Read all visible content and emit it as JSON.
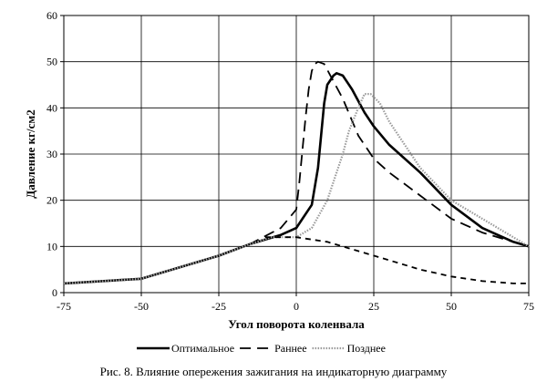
{
  "chart_data": {
    "type": "line",
    "title": "",
    "xlabel": "Угол поворота коленвала",
    "ylabel": "Давление кг/см2",
    "xlim": [
      -75,
      75
    ],
    "ylim": [
      0,
      60
    ],
    "x_ticks": [
      -75,
      -50,
      -25,
      0,
      25,
      50,
      75
    ],
    "y_ticks": [
      0,
      10,
      20,
      30,
      40,
      50,
      60
    ],
    "grid": true,
    "legend_position": "bottom",
    "series": [
      {
        "name": "Оптимальное",
        "style": "solid-bold",
        "color": "#000000",
        "points": [
          [
            -75,
            2
          ],
          [
            -50,
            3
          ],
          [
            -25,
            8
          ],
          [
            -15,
            10.5
          ],
          [
            -5,
            12.5
          ],
          [
            0,
            14
          ],
          [
            2,
            16
          ],
          [
            5,
            19
          ],
          [
            7,
            27
          ],
          [
            8,
            34
          ],
          [
            9,
            41
          ],
          [
            10,
            45
          ],
          [
            12,
            47
          ],
          [
            13,
            47.5
          ],
          [
            15,
            47
          ],
          [
            18,
            44
          ],
          [
            22,
            39
          ],
          [
            25,
            36
          ],
          [
            30,
            32
          ],
          [
            40,
            26
          ],
          [
            50,
            19
          ],
          [
            60,
            14
          ],
          [
            70,
            11
          ],
          [
            75,
            10
          ]
        ]
      },
      {
        "name": "Раннее",
        "style": "dashed-long",
        "color": "#000000",
        "points": [
          [
            -75,
            2
          ],
          [
            -50,
            3
          ],
          [
            -25,
            8
          ],
          [
            -15,
            10.5
          ],
          [
            -5,
            14
          ],
          [
            0,
            18
          ],
          [
            1,
            24
          ],
          [
            2,
            31
          ],
          [
            3,
            38
          ],
          [
            4,
            44
          ],
          [
            5,
            48
          ],
          [
            6,
            49.5
          ],
          [
            7,
            50
          ],
          [
            9,
            49.5
          ],
          [
            11,
            47
          ],
          [
            15,
            42
          ],
          [
            20,
            34
          ],
          [
            25,
            29
          ],
          [
            30,
            26
          ],
          [
            40,
            21
          ],
          [
            50,
            16
          ],
          [
            60,
            13
          ],
          [
            70,
            11
          ],
          [
            75,
            10
          ]
        ]
      },
      {
        "name": "Позднее",
        "style": "dotted-gray",
        "color": "#999999",
        "points": [
          [
            -75,
            2
          ],
          [
            -50,
            3
          ],
          [
            -25,
            8
          ],
          [
            -15,
            10.5
          ],
          [
            -8,
            12
          ],
          [
            0,
            12
          ],
          [
            5,
            14
          ],
          [
            10,
            20
          ],
          [
            13,
            26
          ],
          [
            15,
            30
          ],
          [
            17,
            35
          ],
          [
            20,
            40
          ],
          [
            22,
            43
          ],
          [
            24,
            43
          ],
          [
            27,
            41
          ],
          [
            30,
            37
          ],
          [
            35,
            32
          ],
          [
            40,
            27
          ],
          [
            50,
            20
          ],
          [
            60,
            16
          ],
          [
            70,
            12
          ],
          [
            75,
            10
          ]
        ]
      },
      {
        "name": "",
        "style": "dashed-short",
        "color": "#000000",
        "legend": false,
        "points": [
          [
            -10,
            12
          ],
          [
            0,
            12
          ],
          [
            10,
            11
          ],
          [
            20,
            9
          ],
          [
            30,
            7
          ],
          [
            40,
            5
          ],
          [
            50,
            3.5
          ],
          [
            60,
            2.5
          ],
          [
            70,
            2
          ],
          [
            75,
            2
          ]
        ]
      }
    ]
  },
  "caption": "Рис. 8. Влияние опережения зажигания на индикаторную диаграмму"
}
